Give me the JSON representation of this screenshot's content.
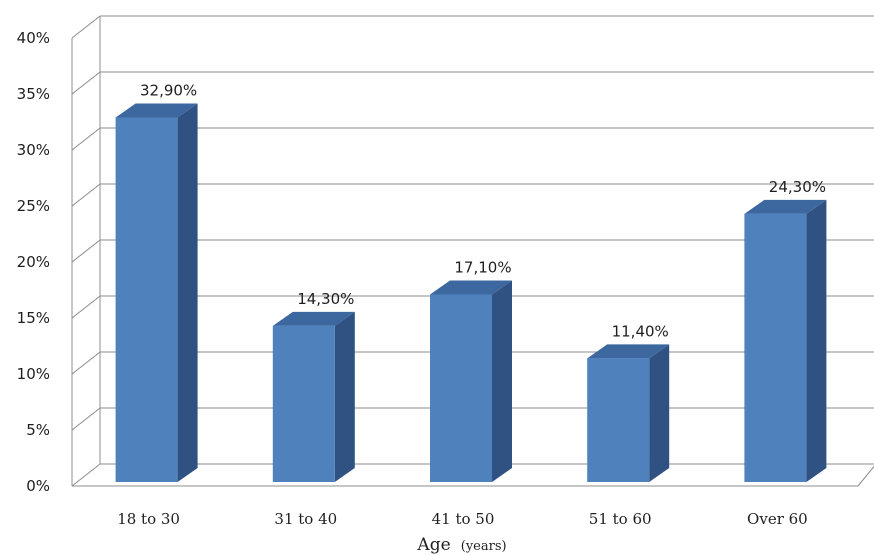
{
  "chart_data": {
    "type": "bar",
    "categories": [
      "18 to 30",
      "31 to 40",
      "41 to 50",
      "51 to 60",
      "Over 60"
    ],
    "values": [
      32.9,
      14.3,
      17.1,
      11.4,
      24.3
    ],
    "data_labels": [
      "32,90%",
      "14,30%",
      "17,10%",
      "11,40%",
      "24,30%"
    ],
    "title": "",
    "xlabel": "Age",
    "xlabel_unit": "(years)",
    "ylabel": "",
    "ylim": [
      0,
      40
    ],
    "yticks": [
      0,
      5,
      10,
      15,
      20,
      25,
      30,
      35,
      40
    ],
    "ytick_labels": [
      "0%",
      "5%",
      "10%",
      "15%",
      "20%",
      "25%",
      "30%",
      "35%",
      "40%"
    ],
    "grid": true,
    "legend": "none",
    "style": "3d-column",
    "colors": {
      "bar_front": "#4f81bd",
      "bar_side": "#2f5283",
      "bar_top": "#3d679f",
      "grid": "#8c8c8c",
      "axis": "#8c8c8c"
    }
  }
}
